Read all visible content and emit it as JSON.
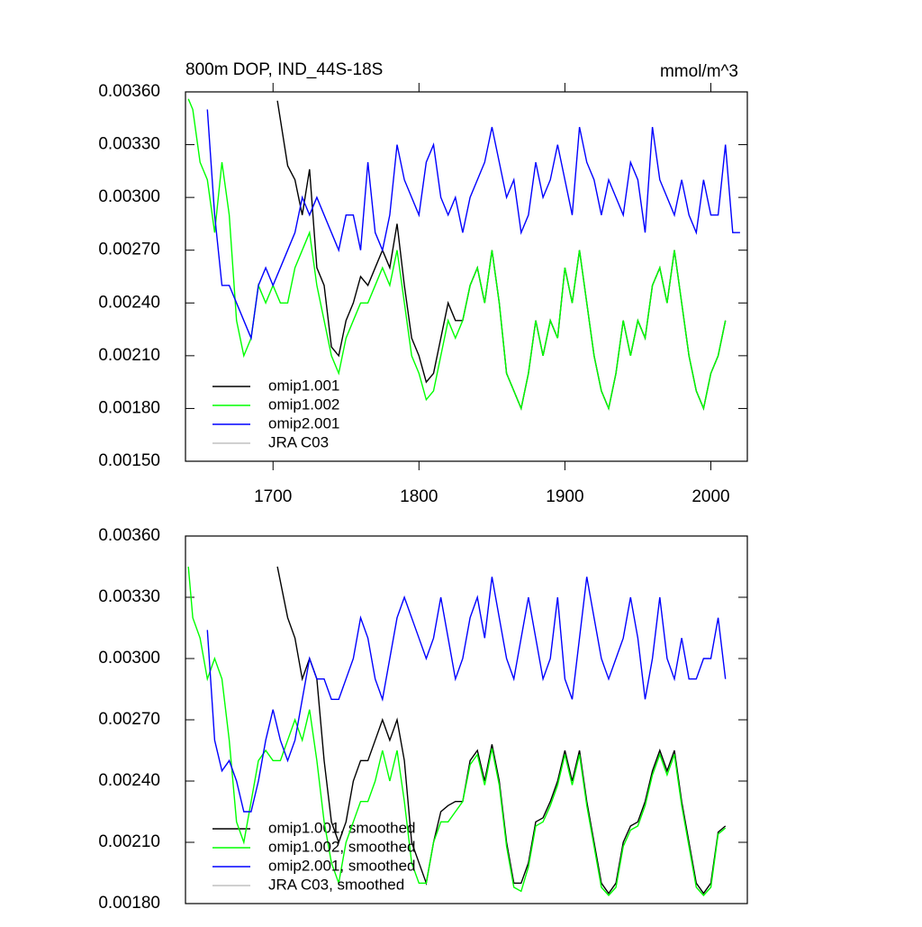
{
  "chart_data": [
    {
      "type": "line",
      "title": "800m DOP, IND_44S-18S",
      "units": "mmol/m^3",
      "legend": "lower left",
      "xlim": [
        1640,
        2025
      ],
      "xticks": [
        1700,
        1800,
        1900,
        2000
      ],
      "ylim": [
        0.0015,
        0.0036
      ],
      "yticks": [
        {
          "value": 0.0015,
          "label": "0.00150"
        },
        {
          "value": 0.0018,
          "label": "0.00180"
        },
        {
          "value": 0.0021,
          "label": "0.00210"
        },
        {
          "value": 0.0024,
          "label": "0.00240"
        },
        {
          "value": 0.0027,
          "label": "0.00270"
        },
        {
          "value": 0.003,
          "label": "0.00300"
        },
        {
          "value": 0.0033,
          "label": "0.00330"
        },
        {
          "value": 0.0036,
          "label": "0.00360"
        }
      ],
      "series": [
        {
          "name": "omip1.001",
          "color": "#000000",
          "x": [
            1703,
            1710,
            1715,
            1720,
            1725,
            1730,
            1735,
            1740,
            1745,
            1750,
            1755,
            1760,
            1765,
            1770,
            1775,
            1780,
            1785,
            1790,
            1795,
            1800,
            1805,
            1810,
            1815,
            1820,
            1825,
            1830,
            1835,
            1840,
            1845,
            1850,
            1855,
            1860,
            1865,
            1870,
            1875,
            1880,
            1885,
            1890,
            1895,
            1900,
            1905,
            1910,
            1915,
            1920,
            1925,
            1930,
            1935,
            1940,
            1945,
            1950,
            1955,
            1960,
            1965,
            1970,
            1975,
            1980,
            1985,
            1990,
            1995,
            2000,
            2005,
            2010
          ],
          "values": [
            0.00355,
            0.00318,
            0.0031,
            0.0029,
            0.00316,
            0.0026,
            0.0025,
            0.00215,
            0.0021,
            0.0023,
            0.0024,
            0.00255,
            0.0025,
            0.0026,
            0.0027,
            0.0026,
            0.00285,
            0.0025,
            0.0022,
            0.0021,
            0.00195,
            0.002,
            0.0022,
            0.0024,
            0.0023,
            0.0023,
            0.0025,
            0.0026,
            0.0024,
            0.0027,
            0.0024,
            0.002,
            0.0019,
            0.0018,
            0.002,
            0.0023,
            0.0021,
            0.0023,
            0.0022,
            0.0026,
            0.0024,
            0.0027,
            0.0024,
            0.0021,
            0.0019,
            0.0018,
            0.002,
            0.0023,
            0.0021,
            0.0023,
            0.0022,
            0.0025,
            0.0026,
            0.0024,
            0.0027,
            0.0024,
            0.0021,
            0.0019,
            0.0018,
            0.002,
            0.0021,
            0.0023
          ]
        },
        {
          "name": "omip1.002",
          "color": "#00ff00",
          "x": [
            1642,
            1645,
            1650,
            1655,
            1660,
            1665,
            1670,
            1675,
            1680,
            1685,
            1690,
            1695,
            1700,
            1705,
            1710,
            1715,
            1720,
            1725,
            1730,
            1735,
            1740,
            1745,
            1750,
            1755,
            1760,
            1765,
            1770,
            1775,
            1780,
            1785,
            1790,
            1795,
            1800,
            1805,
            1810,
            1815,
            1820,
            1825,
            1830,
            1835,
            1840,
            1845,
            1850,
            1855,
            1860,
            1865,
            1870,
            1875,
            1880,
            1885,
            1890,
            1895,
            1900,
            1905,
            1910,
            1915,
            1920,
            1925,
            1930,
            1935,
            1940,
            1945,
            1950,
            1955,
            1960,
            1965,
            1970,
            1975,
            1980,
            1985,
            1990,
            1995,
            2000,
            2005,
            2010
          ],
          "values": [
            0.00356,
            0.0035,
            0.0032,
            0.0031,
            0.0028,
            0.0032,
            0.0029,
            0.0023,
            0.0021,
            0.0022,
            0.0025,
            0.0024,
            0.0025,
            0.0024,
            0.0024,
            0.0026,
            0.0027,
            0.0028,
            0.0025,
            0.0023,
            0.0021,
            0.002,
            0.0022,
            0.0023,
            0.0024,
            0.0024,
            0.0025,
            0.0026,
            0.0025,
            0.0027,
            0.0024,
            0.0021,
            0.002,
            0.00185,
            0.0019,
            0.0021,
            0.0023,
            0.0022,
            0.0023,
            0.0025,
            0.0026,
            0.0024,
            0.0027,
            0.0024,
            0.002,
            0.0019,
            0.0018,
            0.002,
            0.0023,
            0.0021,
            0.0023,
            0.0022,
            0.0026,
            0.0024,
            0.0027,
            0.0024,
            0.0021,
            0.0019,
            0.0018,
            0.002,
            0.0023,
            0.0021,
            0.0023,
            0.0022,
            0.0025,
            0.0026,
            0.0024,
            0.0027,
            0.0024,
            0.0021,
            0.0019,
            0.0018,
            0.002,
            0.0021,
            0.0023
          ]
        },
        {
          "name": "omip2.001",
          "color": "#0000ff",
          "x": [
            1655,
            1660,
            1665,
            1670,
            1675,
            1680,
            1685,
            1690,
            1695,
            1700,
            1705,
            1710,
            1715,
            1720,
            1725,
            1730,
            1735,
            1740,
            1745,
            1750,
            1755,
            1760,
            1765,
            1770,
            1775,
            1780,
            1785,
            1790,
            1795,
            1800,
            1805,
            1810,
            1815,
            1820,
            1825,
            1830,
            1835,
            1840,
            1845,
            1850,
            1855,
            1860,
            1865,
            1870,
            1875,
            1880,
            1885,
            1890,
            1895,
            1900,
            1905,
            1910,
            1915,
            1920,
            1925,
            1930,
            1935,
            1940,
            1945,
            1950,
            1955,
            1960,
            1965,
            1970,
            1975,
            1980,
            1985,
            1990,
            1995,
            2000,
            2005,
            2010,
            2015,
            2020
          ],
          "values": [
            0.0035,
            0.0029,
            0.0025,
            0.0025,
            0.0024,
            0.0023,
            0.0022,
            0.0025,
            0.0026,
            0.0025,
            0.0026,
            0.0027,
            0.0028,
            0.003,
            0.0029,
            0.003,
            0.0029,
            0.0028,
            0.0027,
            0.0029,
            0.0029,
            0.0027,
            0.0032,
            0.0028,
            0.0027,
            0.0029,
            0.0033,
            0.0031,
            0.003,
            0.0029,
            0.0032,
            0.0033,
            0.003,
            0.0029,
            0.003,
            0.0028,
            0.003,
            0.0031,
            0.0032,
            0.0034,
            0.0032,
            0.003,
            0.0031,
            0.0028,
            0.0029,
            0.0032,
            0.003,
            0.0031,
            0.0033,
            0.0031,
            0.0029,
            0.0034,
            0.0032,
            0.0031,
            0.0029,
            0.0031,
            0.003,
            0.0029,
            0.0032,
            0.0031,
            0.0028,
            0.0034,
            0.0031,
            0.003,
            0.0029,
            0.0031,
            0.0029,
            0.0028,
            0.0031,
            0.0029,
            0.0029,
            0.0033,
            0.0028,
            0.0028
          ]
        },
        {
          "name": "JRA C03",
          "color": "#c0c0c0",
          "x": [],
          "values": []
        }
      ]
    },
    {
      "type": "line",
      "legend": "lower left",
      "xlim": [
        1640,
        2025
      ],
      "ylim": [
        0.0018,
        0.0036
      ],
      "yticks": [
        {
          "value": 0.0018,
          "label": "0.00180"
        },
        {
          "value": 0.0021,
          "label": "0.00210"
        },
        {
          "value": 0.0024,
          "label": "0.00240"
        },
        {
          "value": 0.0027,
          "label": "0.00270"
        },
        {
          "value": 0.003,
          "label": "0.00300"
        },
        {
          "value": 0.0033,
          "label": "0.00330"
        },
        {
          "value": 0.0036,
          "label": "0.00360"
        }
      ],
      "series": [
        {
          "name": "omip1.001, smoothed",
          "color": "#000000",
          "x": [
            1703,
            1710,
            1715,
            1720,
            1725,
            1730,
            1735,
            1740,
            1745,
            1750,
            1755,
            1760,
            1765,
            1770,
            1775,
            1780,
            1785,
            1790,
            1795,
            1800,
            1805,
            1810,
            1815,
            1820,
            1825,
            1830,
            1835,
            1840,
            1845,
            1850,
            1855,
            1860,
            1865,
            1870,
            1875,
            1880,
            1885,
            1890,
            1895,
            1900,
            1905,
            1910,
            1915,
            1920,
            1925,
            1930,
            1935,
            1940,
            1945,
            1950,
            1955,
            1960,
            1965,
            1970,
            1975,
            1980,
            1985,
            1990,
            1995,
            2000,
            2005,
            2010
          ],
          "values": [
            0.00345,
            0.0032,
            0.0031,
            0.0029,
            0.003,
            0.0029,
            0.0025,
            0.0022,
            0.0021,
            0.0022,
            0.0024,
            0.0025,
            0.0025,
            0.0026,
            0.0027,
            0.0026,
            0.0027,
            0.0025,
            0.0021,
            0.002,
            0.0019,
            0.0021,
            0.00225,
            0.00228,
            0.0023,
            0.0023,
            0.0025,
            0.00255,
            0.0024,
            0.00258,
            0.0024,
            0.0021,
            0.0019,
            0.0019,
            0.002,
            0.0022,
            0.00222,
            0.0023,
            0.0024,
            0.00255,
            0.0024,
            0.00255,
            0.0023,
            0.0021,
            0.0019,
            0.00185,
            0.0019,
            0.0021,
            0.00218,
            0.0022,
            0.0023,
            0.00245,
            0.00255,
            0.00245,
            0.00255,
            0.0023,
            0.0021,
            0.0019,
            0.00185,
            0.0019,
            0.00215,
            0.00218
          ]
        },
        {
          "name": "omip1.002, smoothed",
          "color": "#00ff00",
          "x": [
            1642,
            1645,
            1650,
            1655,
            1660,
            1665,
            1670,
            1675,
            1680,
            1685,
            1690,
            1695,
            1700,
            1705,
            1710,
            1715,
            1720,
            1725,
            1730,
            1735,
            1740,
            1745,
            1750,
            1755,
            1760,
            1765,
            1770,
            1775,
            1780,
            1785,
            1790,
            1795,
            1800,
            1805,
            1810,
            1815,
            1820,
            1825,
            1830,
            1835,
            1840,
            1845,
            1850,
            1855,
            1860,
            1865,
            1870,
            1875,
            1880,
            1885,
            1890,
            1895,
            1900,
            1905,
            1910,
            1915,
            1920,
            1925,
            1930,
            1935,
            1940,
            1945,
            1950,
            1955,
            1960,
            1965,
            1970,
            1975,
            1980,
            1985,
            1990,
            1995,
            2000,
            2005,
            2010
          ],
          "values": [
            0.00345,
            0.0032,
            0.0031,
            0.0029,
            0.003,
            0.0029,
            0.0026,
            0.0022,
            0.0021,
            0.0023,
            0.0025,
            0.00255,
            0.0025,
            0.0025,
            0.0026,
            0.0027,
            0.0026,
            0.00275,
            0.0025,
            0.0022,
            0.002,
            0.0019,
            0.0021,
            0.0022,
            0.0023,
            0.0023,
            0.0024,
            0.00255,
            0.0024,
            0.00255,
            0.0023,
            0.002,
            0.0019,
            0.0019,
            0.0021,
            0.0022,
            0.0022,
            0.00225,
            0.0023,
            0.00248,
            0.00253,
            0.00238,
            0.00256,
            0.00238,
            0.00208,
            0.00188,
            0.00186,
            0.00198,
            0.00218,
            0.0022,
            0.00228,
            0.00238,
            0.00253,
            0.00238,
            0.00253,
            0.00228,
            0.00208,
            0.00188,
            0.00184,
            0.00188,
            0.00208,
            0.00216,
            0.00218,
            0.00228,
            0.00243,
            0.00253,
            0.00243,
            0.00253,
            0.00228,
            0.00208,
            0.00188,
            0.00184,
            0.00188,
            0.00214,
            0.00217
          ]
        },
        {
          "name": "omip2.001, smoothed",
          "color": "#0000ff",
          "x": [
            1655,
            1660,
            1665,
            1670,
            1675,
            1680,
            1685,
            1690,
            1695,
            1700,
            1705,
            1710,
            1715,
            1720,
            1725,
            1730,
            1735,
            1740,
            1745,
            1750,
            1755,
            1760,
            1765,
            1770,
            1775,
            1780,
            1785,
            1790,
            1795,
            1800,
            1805,
            1810,
            1815,
            1820,
            1825,
            1830,
            1835,
            1840,
            1845,
            1850,
            1855,
            1860,
            1865,
            1870,
            1875,
            1880,
            1885,
            1890,
            1895,
            1900,
            1905,
            1910,
            1915,
            1920,
            1925,
            1930,
            1935,
            1940,
            1945,
            1950,
            1955,
            1960,
            1965,
            1970,
            1975,
            1980,
            1985,
            1990,
            1995,
            2000,
            2005,
            2010
          ],
          "values": [
            0.00314,
            0.0026,
            0.00245,
            0.0025,
            0.0024,
            0.00225,
            0.00225,
            0.0024,
            0.0026,
            0.00275,
            0.0026,
            0.0025,
            0.0026,
            0.0028,
            0.003,
            0.0029,
            0.0029,
            0.0028,
            0.0028,
            0.0029,
            0.003,
            0.0032,
            0.0031,
            0.0029,
            0.0028,
            0.003,
            0.0032,
            0.0033,
            0.0032,
            0.0031,
            0.003,
            0.0031,
            0.0033,
            0.0031,
            0.0029,
            0.003,
            0.0032,
            0.0033,
            0.0031,
            0.0034,
            0.0032,
            0.003,
            0.0029,
            0.0031,
            0.0033,
            0.0031,
            0.0029,
            0.003,
            0.0033,
            0.0029,
            0.0028,
            0.0031,
            0.0034,
            0.0032,
            0.003,
            0.0029,
            0.003,
            0.0031,
            0.0033,
            0.0031,
            0.0028,
            0.003,
            0.0033,
            0.003,
            0.0029,
            0.0031,
            0.0029,
            0.0029,
            0.003,
            0.003,
            0.0032,
            0.0029
          ]
        },
        {
          "name": "JRA C03, smoothed",
          "color": "#c0c0c0",
          "x": [],
          "values": []
        }
      ]
    }
  ]
}
